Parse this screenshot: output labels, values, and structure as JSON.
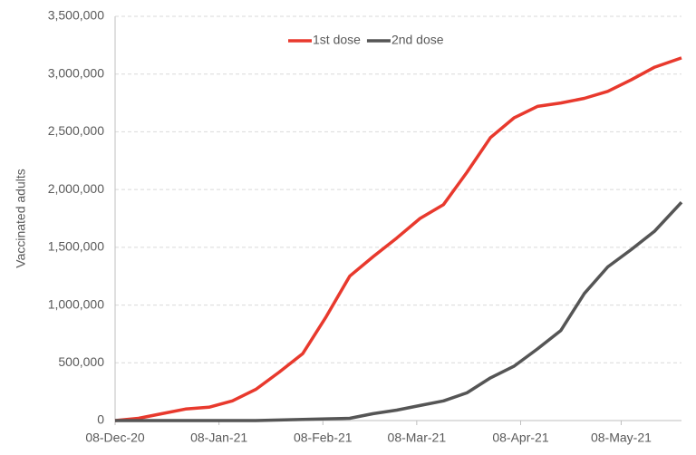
{
  "chart_data": {
    "type": "line",
    "y_label": "Vaccinated adults",
    "x": [
      "2020-12-08",
      "2020-12-15",
      "2020-12-22",
      "2020-12-29",
      "2021-01-05",
      "2021-01-12",
      "2021-01-19",
      "2021-01-26",
      "2021-02-02",
      "2021-02-09",
      "2021-02-16",
      "2021-02-23",
      "2021-03-02",
      "2021-03-09",
      "2021-03-16",
      "2021-03-23",
      "2021-03-30",
      "2021-04-06",
      "2021-04-13",
      "2021-04-20",
      "2021-04-27",
      "2021-05-04",
      "2021-05-11",
      "2021-05-18",
      "2021-05-26"
    ],
    "series": [
      {
        "name": "1st dose",
        "color": "#e8392d",
        "values": [
          0,
          20000,
          60000,
          100000,
          115000,
          170000,
          270000,
          420000,
          580000,
          900000,
          1250000,
          1420000,
          1580000,
          1750000,
          1870000,
          2150000,
          2450000,
          2620000,
          2720000,
          2750000,
          2790000,
          2850000,
          2950000,
          3060000,
          3140000
        ]
      },
      {
        "name": "2nd dose",
        "color": "#555555",
        "values": [
          0,
          0,
          0,
          0,
          0,
          0,
          0,
          5000,
          10000,
          15000,
          20000,
          60000,
          90000,
          130000,
          170000,
          240000,
          370000,
          470000,
          620000,
          780000,
          1100000,
          1330000,
          1480000,
          1640000,
          1890000
        ]
      }
    ],
    "xlim": [
      "2020-12-08",
      "2021-05-26"
    ],
    "xticks": [
      {
        "value": "2020-12-08",
        "label": "08-Dec-20"
      },
      {
        "value": "2021-01-08",
        "label": "08-Jan-21"
      },
      {
        "value": "2021-02-08",
        "label": "08-Feb-21"
      },
      {
        "value": "2021-03-08",
        "label": "08-Mar-21"
      },
      {
        "value": "2021-04-08",
        "label": "08-Apr-21"
      },
      {
        "value": "2021-05-08",
        "label": "08-May-21"
      }
    ],
    "ylim": [
      0,
      3500000
    ],
    "yticks": [
      0,
      {
        "value": 500000,
        "label": "500,000"
      },
      {
        "value": 1000000,
        "label": "1,000,000"
      },
      {
        "value": 1500000,
        "label": "1,500,000"
      },
      {
        "value": 2000000,
        "label": "2,000,000"
      },
      {
        "value": 2500000,
        "label": "2,500,000"
      },
      {
        "value": 3000000,
        "label": "3,000,000"
      },
      {
        "value": 3500000,
        "label": "3,500,000"
      }
    ],
    "grid": true,
    "legend": "top"
  }
}
